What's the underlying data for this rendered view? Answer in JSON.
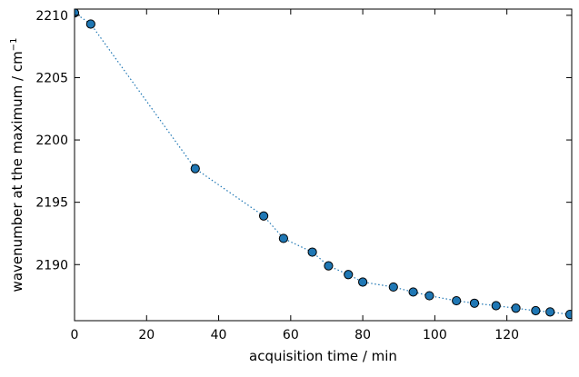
{
  "chart_data": {
    "type": "scatter",
    "title": "",
    "xlabel": "acquisition time / min",
    "ylabel": "wavenumber at the maximum / cm",
    "ylabel_superscript": "−1",
    "xlim": [
      0,
      138
    ],
    "ylim": [
      2185.5,
      2210.5
    ],
    "x_ticks": [
      0,
      20,
      40,
      60,
      80,
      100,
      120
    ],
    "x_tick_labels": [
      "0",
      "20",
      "40",
      "60",
      "80",
      "100",
      "120"
    ],
    "y_ticks": [
      2190,
      2195,
      2200,
      2205,
      2210
    ],
    "y_tick_labels": [
      "2190",
      "2195",
      "2200",
      "2205",
      "2210"
    ],
    "grid": false,
    "legend": "none",
    "series": [
      {
        "line_style": "dotted",
        "line_color": "#1f77b4",
        "marker": "circle",
        "marker_face_color": "#1f77b4",
        "marker_edge_color": "#000000",
        "x": [
          0,
          4.5,
          33.5,
          52.5,
          58,
          66,
          70.5,
          76,
          80,
          88.5,
          94,
          98.5,
          106,
          111,
          117,
          122.5,
          128,
          132,
          137.5
        ],
        "y": [
          2210.2,
          2209.3,
          2197.7,
          2193.9,
          2192.1,
          2191.0,
          2189.9,
          2189.2,
          2188.6,
          2188.2,
          2187.8,
          2187.5,
          2187.1,
          2186.9,
          2186.7,
          2186.5,
          2186.3,
          2186.2,
          2186.0
        ]
      }
    ]
  }
}
